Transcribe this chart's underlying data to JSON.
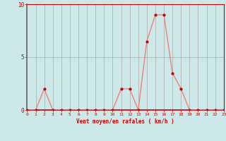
{
  "x": [
    0,
    1,
    2,
    3,
    4,
    5,
    6,
    7,
    8,
    9,
    10,
    11,
    12,
    13,
    14,
    15,
    16,
    17,
    18,
    19,
    20,
    21,
    22,
    23
  ],
  "y": [
    0,
    0,
    2,
    0,
    0,
    0,
    0,
    0,
    0,
    0,
    0,
    2,
    2,
    0,
    6.5,
    9,
    9,
    3.5,
    2,
    0,
    0,
    0,
    0,
    0
  ],
  "line_color": "#f08080",
  "marker_color": "#cc0000",
  "bg_color": "#cce8e8",
  "grid_color_major": "#aaaaaa",
  "grid_color_minor": "#ccaaaa",
  "axis_color": "#cc0000",
  "xlabel": "Vent moyen/en rafales ( km/h )",
  "xlim": [
    0,
    23
  ],
  "ylim": [
    0,
    10
  ],
  "yticks": [
    0,
    5,
    10
  ],
  "xticks": [
    0,
    1,
    2,
    3,
    4,
    5,
    6,
    7,
    8,
    9,
    10,
    11,
    12,
    13,
    14,
    15,
    16,
    17,
    18,
    19,
    20,
    21,
    22,
    23
  ]
}
